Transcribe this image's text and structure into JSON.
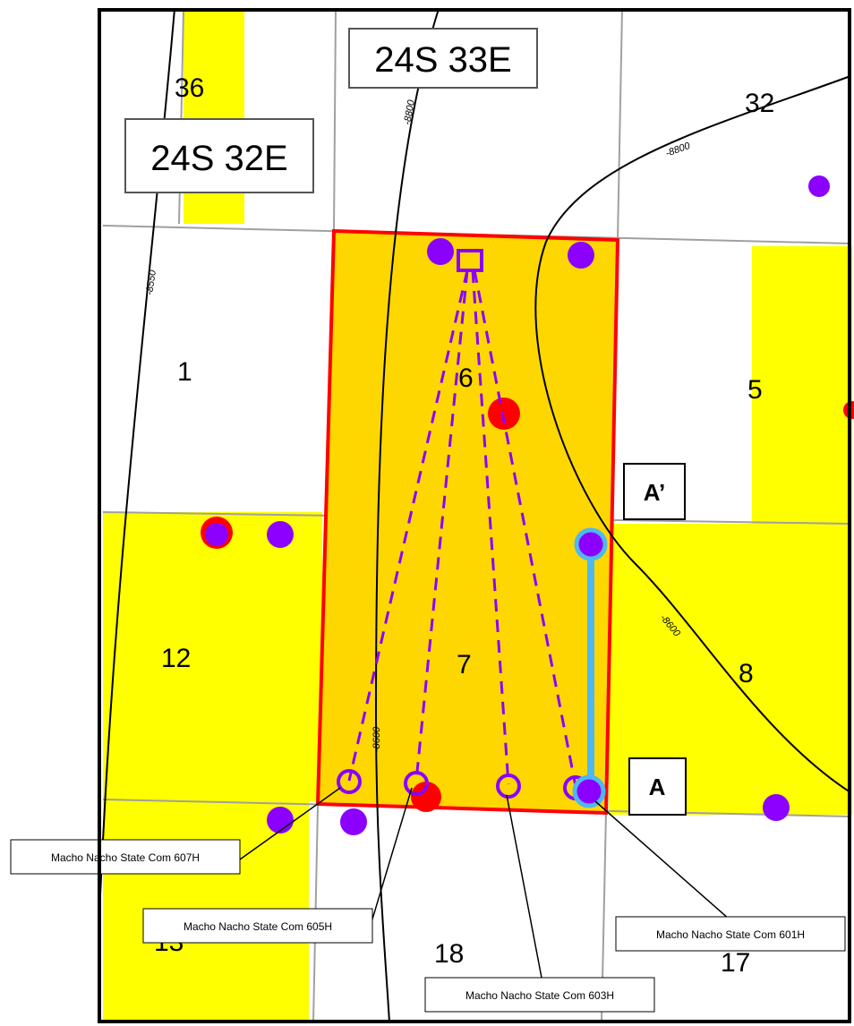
{
  "townships": [
    "24S 33E",
    "24S 32E"
  ],
  "sections": [
    "36",
    "32",
    "1",
    "6",
    "5",
    "12",
    "7",
    "8",
    "13",
    "18",
    "17"
  ],
  "contours": [
    "-8800",
    "-8550",
    "-8800",
    "-8600",
    "-8600"
  ],
  "cross_section": {
    "start": "A",
    "end": "A’"
  },
  "wells": [
    "Macho Nacho State Com 607H",
    "Macho Nacho State Com 605H",
    "Macho Nacho State Com 601H",
    "Macho Nacho State Com 603H"
  ]
}
